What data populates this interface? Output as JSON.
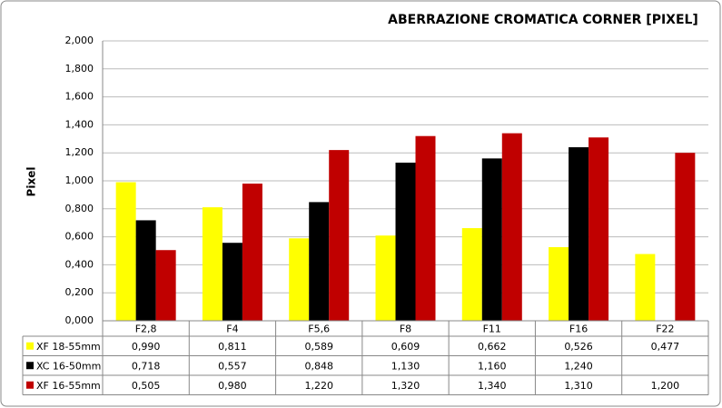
{
  "chart_data": {
    "type": "bar",
    "title": "ABERRAZIONE CROMATICA CORNER [PIXEL]",
    "y_label": "Pixel",
    "categories": [
      "F2,8",
      "F4",
      "F5,6",
      "F8",
      "F11",
      "F16",
      "F22"
    ],
    "series": [
      {
        "name": "XF 18-55mm",
        "color": "#ffff00",
        "values": [
          0.99,
          0.811,
          0.589,
          0.609,
          0.662,
          0.526,
          0.477
        ],
        "value_labels": [
          "0,990",
          "0,811",
          "0,589",
          "0,609",
          "0,662",
          "0,526",
          "0,477"
        ]
      },
      {
        "name": "XC 16-50mm",
        "color": "#000000",
        "values": [
          0.718,
          0.557,
          0.848,
          1.13,
          1.16,
          1.24,
          null
        ],
        "value_labels": [
          "0,718",
          "0,557",
          "0,848",
          "1,130",
          "1,160",
          "1,240",
          null
        ]
      },
      {
        "name": "XF 16-55mm",
        "color": "#c00000",
        "values": [
          0.505,
          0.98,
          1.22,
          1.32,
          1.34,
          1.31,
          1.2
        ],
        "value_labels": [
          "0,505",
          "0,980",
          "1,220",
          "1,320",
          "1,340",
          "1,310",
          "1,200"
        ]
      }
    ],
    "ylim": [
      0,
      2
    ],
    "yticks": [
      {
        "value": 0,
        "label": "0,000"
      },
      {
        "value": 0.2,
        "label": "0,200"
      },
      {
        "value": 0.4,
        "label": "0,400"
      },
      {
        "value": 0.6,
        "label": "0,600"
      },
      {
        "value": 0.8,
        "label": "0,800"
      },
      {
        "value": 1,
        "label": "1,000"
      },
      {
        "value": 1.2,
        "label": "1,200"
      },
      {
        "value": 1.4,
        "label": "1,400"
      },
      {
        "value": 1.6,
        "label": "1,600"
      },
      {
        "value": 1.8,
        "label": "1,800"
      },
      {
        "value": 2,
        "label": "2,000"
      }
    ],
    "grid": true
  }
}
